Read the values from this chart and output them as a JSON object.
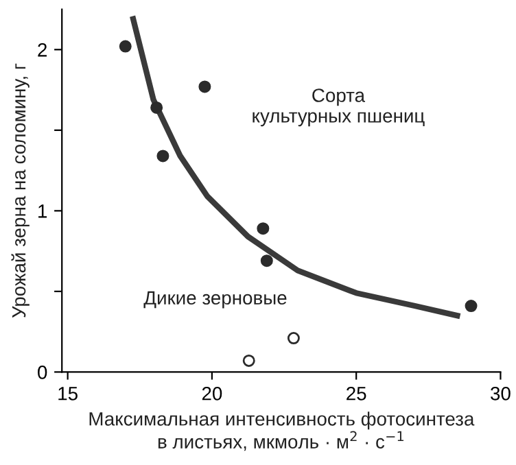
{
  "chart_data": {
    "type": "scatter",
    "xlabel": "Максимальная интенсивность фотосинтеза\nв листьях, мкмоль · м$^{2}$ · с$^{−1}$",
    "ylabel": "Урожай зерна на соломину, г",
    "annotations": [
      "Сорта\nкультурных пшениц",
      "Дикие зерновые"
    ],
    "series": [
      {
        "color": "#2b2b2b",
        "marker": "circle",
        "x": [
          17.0,
          18.08,
          18.3,
          19.75,
          21.77,
          21.9,
          28.98
        ],
        "values": [
          2.02,
          1.64,
          1.34,
          1.77,
          0.89,
          0.69,
          0.41
        ]
      },
      {
        "color": "#ffffff",
        "marker": "circle",
        "x": [
          21.28,
          22.83
        ],
        "values": [
          0.07,
          0.21
        ]
      },
      {
        "type": "line",
        "color": "#3a3a3a",
        "marker": "none",
        "x": [
          17.27,
          17.97,
          18.9,
          19.84,
          21.25,
          22.97,
          25.0,
          27.03,
          28.5
        ],
        "values": [
          2.19,
          1.69,
          1.34,
          1.09,
          0.84,
          0.63,
          0.49,
          0.41,
          0.35
        ]
      }
    ],
    "xlim": [
      14.8,
      30
    ],
    "ylim": [
      0,
      2.25
    ],
    "xticks": [
      15,
      20,
      25,
      30
    ],
    "yticks": [
      0,
      {
        "value": 0.5,
        "label": null
      },
      1,
      {
        "value": 1.5,
        "label": null
      },
      2
    ],
    "grid": false,
    "legend": false
  }
}
